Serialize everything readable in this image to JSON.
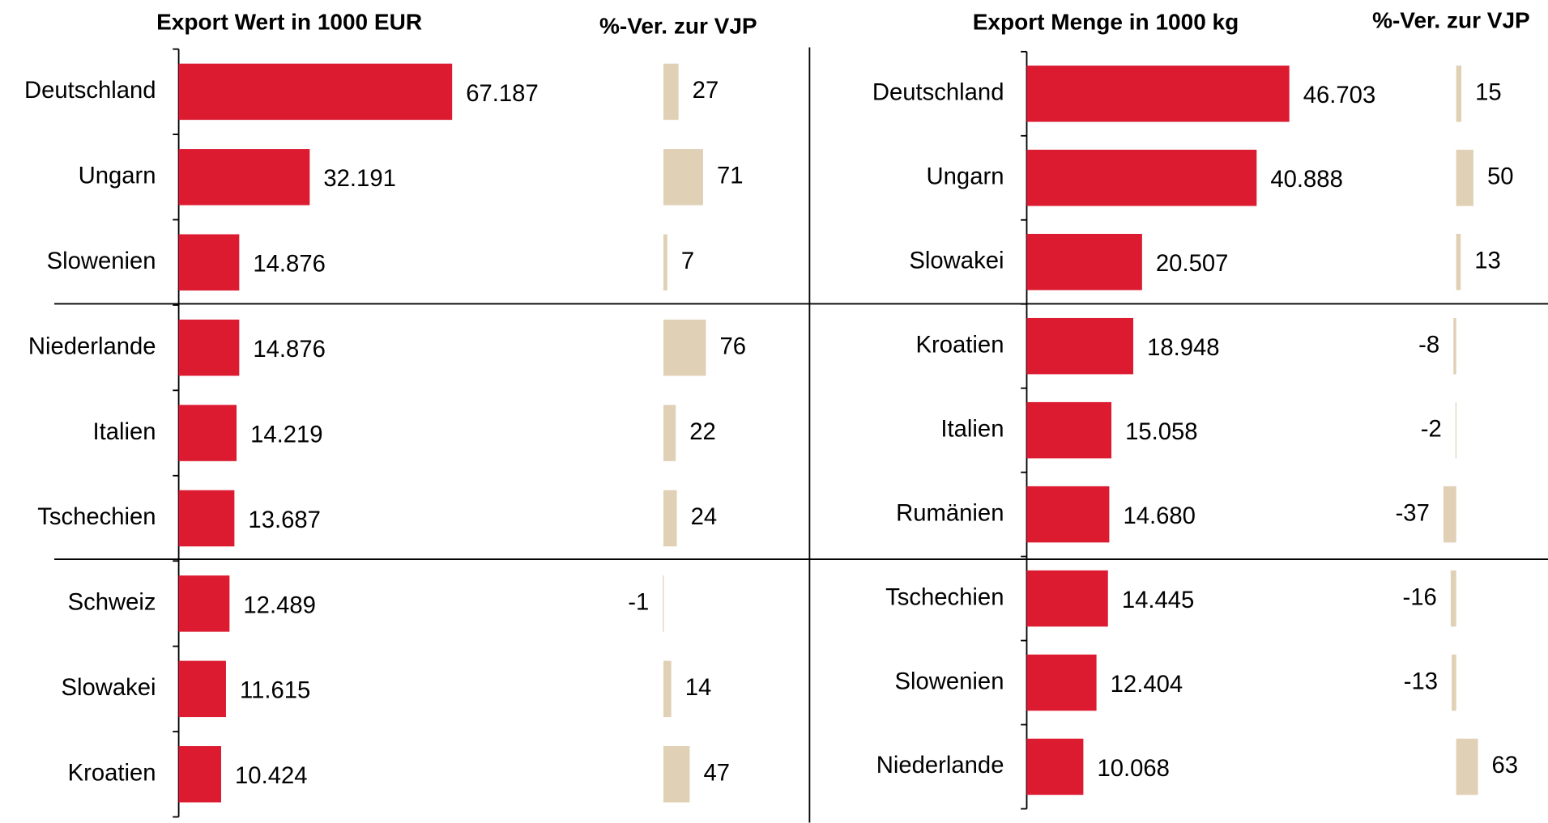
{
  "chart_data": [
    {
      "type": "bar",
      "orientation": "horizontal",
      "categories": [
        "Deutschland",
        "Ungarn",
        "Slowenien",
        "Niederlande",
        "Italien",
        "Tschechien",
        "Schweiz",
        "Slowakei",
        "Kroatien"
      ],
      "series": [
        {
          "name": "Export Wert in 1000 EUR",
          "color": "#dc1a30",
          "values": [
            67187,
            32191,
            14876,
            14876,
            14219,
            13687,
            12489,
            11615,
            10424
          ],
          "value_labels": [
            "67.187",
            "32.191",
            "14.876",
            "14.876",
            "14.219",
            "13.687",
            "12.489",
            "11.615",
            "10.424"
          ]
        },
        {
          "name": "%-Ver. zur VJP",
          "color": "#e0d0b5",
          "values": [
            27,
            71,
            7,
            76,
            22,
            24,
            -1,
            14,
            47
          ]
        }
      ]
    },
    {
      "type": "bar",
      "orientation": "horizontal",
      "categories": [
        "Deutschland",
        "Ungarn",
        "Slowakei",
        "Kroatien",
        "Italien",
        "Rumänien",
        "Tschechien",
        "Slowenien",
        "Niederlande"
      ],
      "series": [
        {
          "name": "Export Menge in 1000 kg",
          "color": "#dc1a30",
          "values": [
            46703,
            40888,
            20507,
            18948,
            15058,
            14680,
            14445,
            12404,
            10068
          ],
          "value_labels": [
            "46.703",
            "40.888",
            "20.507",
            "18.948",
            "15.058",
            "14.680",
            "14.445",
            "12.404",
            "10.068"
          ]
        },
        {
          "name": "%-Ver. zur VJP",
          "color": "#e0d0b5",
          "values": [
            15,
            50,
            13,
            -8,
            -2,
            -37,
            -16,
            -13,
            63
          ]
        }
      ]
    }
  ]
}
